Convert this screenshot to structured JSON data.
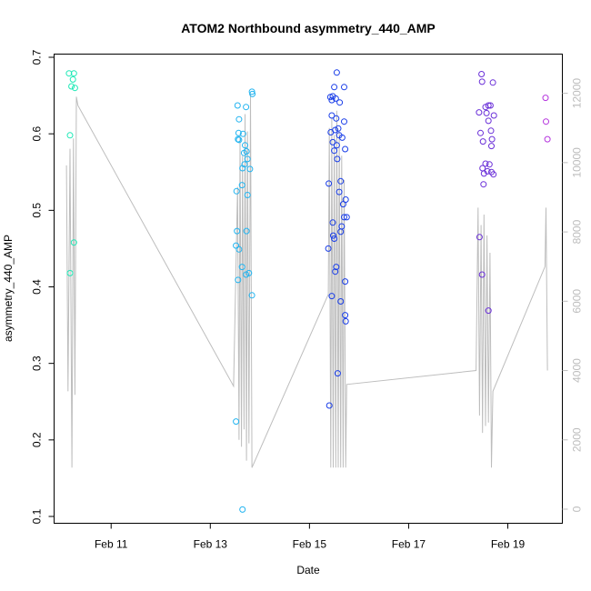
{
  "chart_data": {
    "type": "scatter",
    "title": "ATOM2 Northbound asymmetry_440_AMP",
    "xlabel": "Date",
    "ylabel": "asymmetry_440_AMP",
    "x_ticks": [
      {
        "value": 11,
        "label": "Feb 11"
      },
      {
        "value": 13,
        "label": "Feb 13"
      },
      {
        "value": 15,
        "label": "Feb 15"
      },
      {
        "value": 17,
        "label": "Feb 17"
      },
      {
        "value": 19,
        "label": "Feb 19"
      }
    ],
    "xlim": [
      9.85,
      20.1
    ],
    "ylim": [
      0.1,
      0.7
    ],
    "y_ticks": [
      0.1,
      0.2,
      0.3,
      0.4,
      0.5,
      0.6,
      0.7
    ],
    "y2_ticks": [
      0,
      2000,
      4000,
      6000,
      8000,
      10000,
      12000
    ],
    "y2lim": [
      0,
      12200
    ],
    "grid": false,
    "legend": "none",
    "point_series": [
      {
        "color": "#1de9b6",
        "points": [
          [
            10.15,
            0.679
          ],
          [
            10.25,
            0.679
          ],
          [
            10.23,
            0.671
          ],
          [
            10.2,
            0.662
          ],
          [
            10.27,
            0.66
          ],
          [
            10.17,
            0.598
          ],
          [
            10.25,
            0.458
          ],
          [
            10.17,
            0.418
          ]
        ]
      },
      {
        "color": "#22b4f0",
        "points": [
          [
            13.55,
            0.637
          ],
          [
            13.58,
            0.619
          ],
          [
            13.57,
            0.601
          ],
          [
            13.56,
            0.593
          ],
          [
            13.58,
            0.592
          ],
          [
            13.66,
            0.6
          ],
          [
            13.72,
            0.635
          ],
          [
            13.84,
            0.655
          ],
          [
            13.85,
            0.652
          ],
          [
            13.68,
            0.575
          ],
          [
            13.7,
            0.585
          ],
          [
            13.73,
            0.577
          ],
          [
            13.65,
            0.555
          ],
          [
            13.69,
            0.56
          ],
          [
            13.75,
            0.567
          ],
          [
            13.8,
            0.554
          ],
          [
            13.53,
            0.525
          ],
          [
            13.64,
            0.533
          ],
          [
            13.75,
            0.52
          ],
          [
            13.54,
            0.473
          ],
          [
            13.73,
            0.473
          ],
          [
            13.52,
            0.454
          ],
          [
            13.58,
            0.449
          ],
          [
            13.64,
            0.426
          ],
          [
            13.72,
            0.416
          ],
          [
            13.78,
            0.418
          ],
          [
            13.56,
            0.409
          ],
          [
            13.84,
            0.389
          ],
          [
            13.52,
            0.224
          ],
          [
            13.65,
            0.109
          ]
        ]
      },
      {
        "color": "#1a3ee8",
        "points": [
          [
            15.55,
            0.68
          ],
          [
            15.5,
            0.661
          ],
          [
            15.7,
            0.661
          ],
          [
            15.42,
            0.648
          ],
          [
            15.47,
            0.649
          ],
          [
            15.45,
            0.644
          ],
          [
            15.53,
            0.646
          ],
          [
            15.61,
            0.641
          ],
          [
            15.45,
            0.624
          ],
          [
            15.54,
            0.62
          ],
          [
            15.7,
            0.616
          ],
          [
            15.58,
            0.607
          ],
          [
            15.52,
            0.605
          ],
          [
            15.43,
            0.602
          ],
          [
            15.6,
            0.598
          ],
          [
            15.66,
            0.595
          ],
          [
            15.47,
            0.589
          ],
          [
            15.55,
            0.585
          ],
          [
            15.5,
            0.578
          ],
          [
            15.72,
            0.58
          ],
          [
            15.56,
            0.567
          ],
          [
            15.39,
            0.535
          ],
          [
            15.63,
            0.538
          ],
          [
            15.6,
            0.524
          ],
          [
            15.73,
            0.514
          ],
          [
            15.68,
            0.508
          ],
          [
            15.7,
            0.491
          ],
          [
            15.75,
            0.491
          ],
          [
            15.47,
            0.484
          ],
          [
            15.65,
            0.479
          ],
          [
            15.48,
            0.467
          ],
          [
            15.63,
            0.472
          ],
          [
            15.5,
            0.463
          ],
          [
            15.38,
            0.45
          ],
          [
            15.54,
            0.426
          ],
          [
            15.52,
            0.42
          ],
          [
            15.72,
            0.407
          ],
          [
            15.45,
            0.388
          ],
          [
            15.63,
            0.381
          ],
          [
            15.72,
            0.363
          ],
          [
            15.73,
            0.355
          ],
          [
            15.57,
            0.287
          ],
          [
            15.4,
            0.245
          ]
        ]
      },
      {
        "color": "#6a2fd8",
        "points": [
          [
            18.47,
            0.678
          ],
          [
            18.48,
            0.668
          ],
          [
            18.7,
            0.667
          ],
          [
            18.42,
            0.628
          ],
          [
            18.55,
            0.635
          ],
          [
            18.61,
            0.637
          ],
          [
            18.65,
            0.637
          ],
          [
            18.72,
            0.624
          ],
          [
            18.61,
            0.617
          ],
          [
            18.57,
            0.627
          ],
          [
            18.45,
            0.601
          ],
          [
            18.66,
            0.604
          ],
          [
            18.68,
            0.593
          ],
          [
            18.5,
            0.59
          ],
          [
            18.67,
            0.584
          ],
          [
            18.55,
            0.561
          ],
          [
            18.63,
            0.56
          ],
          [
            18.59,
            0.551
          ],
          [
            18.52,
            0.548
          ],
          [
            18.49,
            0.555
          ],
          [
            18.67,
            0.55
          ],
          [
            18.71,
            0.547
          ],
          [
            18.51,
            0.534
          ],
          [
            18.43,
            0.465
          ],
          [
            18.48,
            0.416
          ],
          [
            18.61,
            0.369
          ]
        ]
      },
      {
        "color": "#b535de",
        "points": [
          [
            19.76,
            0.647
          ],
          [
            19.77,
            0.616
          ],
          [
            19.8,
            0.593
          ]
        ]
      }
    ],
    "line_series": {
      "color": "#bdbdbd",
      "points": [
        [
          10.1,
          9920
        ],
        [
          10.13,
          3400
        ],
        [
          10.17,
          10400
        ],
        [
          10.21,
          1200
        ],
        [
          10.24,
          10700
        ],
        [
          10.27,
          3300
        ],
        [
          10.3,
          11900
        ],
        [
          10.33,
          11650
        ],
        [
          13.47,
          3550
        ],
        [
          13.55,
          9300
        ],
        [
          13.58,
          2000
        ],
        [
          13.6,
          10800
        ],
        [
          13.63,
          1800
        ],
        [
          13.65,
          10200
        ],
        [
          13.68,
          2300
        ],
        [
          13.7,
          11400
        ],
        [
          13.73,
          1400
        ],
        [
          13.75,
          10900
        ],
        [
          13.78,
          1900
        ],
        [
          13.81,
          12000
        ],
        [
          13.84,
          1200
        ],
        [
          15.38,
          6200
        ],
        [
          15.4,
          11000
        ],
        [
          15.43,
          1200
        ],
        [
          15.45,
          11300
        ],
        [
          15.48,
          1200
        ],
        [
          15.5,
          10800
        ],
        [
          15.53,
          1200
        ],
        [
          15.55,
          11500
        ],
        [
          15.58,
          1200
        ],
        [
          15.6,
          10900
        ],
        [
          15.63,
          1200
        ],
        [
          15.65,
          10200
        ],
        [
          15.68,
          1200
        ],
        [
          15.7,
          9500
        ],
        [
          15.73,
          1200
        ],
        [
          15.75,
          3600
        ],
        [
          18.36,
          4000
        ],
        [
          18.4,
          8700
        ],
        [
          18.43,
          2700
        ],
        [
          18.46,
          8200
        ],
        [
          18.49,
          2200
        ],
        [
          18.52,
          8500
        ],
        [
          18.55,
          2400
        ],
        [
          18.58,
          7900
        ],
        [
          18.61,
          2500
        ],
        [
          18.64,
          7400
        ],
        [
          18.67,
          1200
        ],
        [
          18.7,
          3400
        ],
        [
          19.75,
          7000
        ],
        [
          19.77,
          8700
        ],
        [
          19.8,
          4000
        ]
      ]
    }
  }
}
